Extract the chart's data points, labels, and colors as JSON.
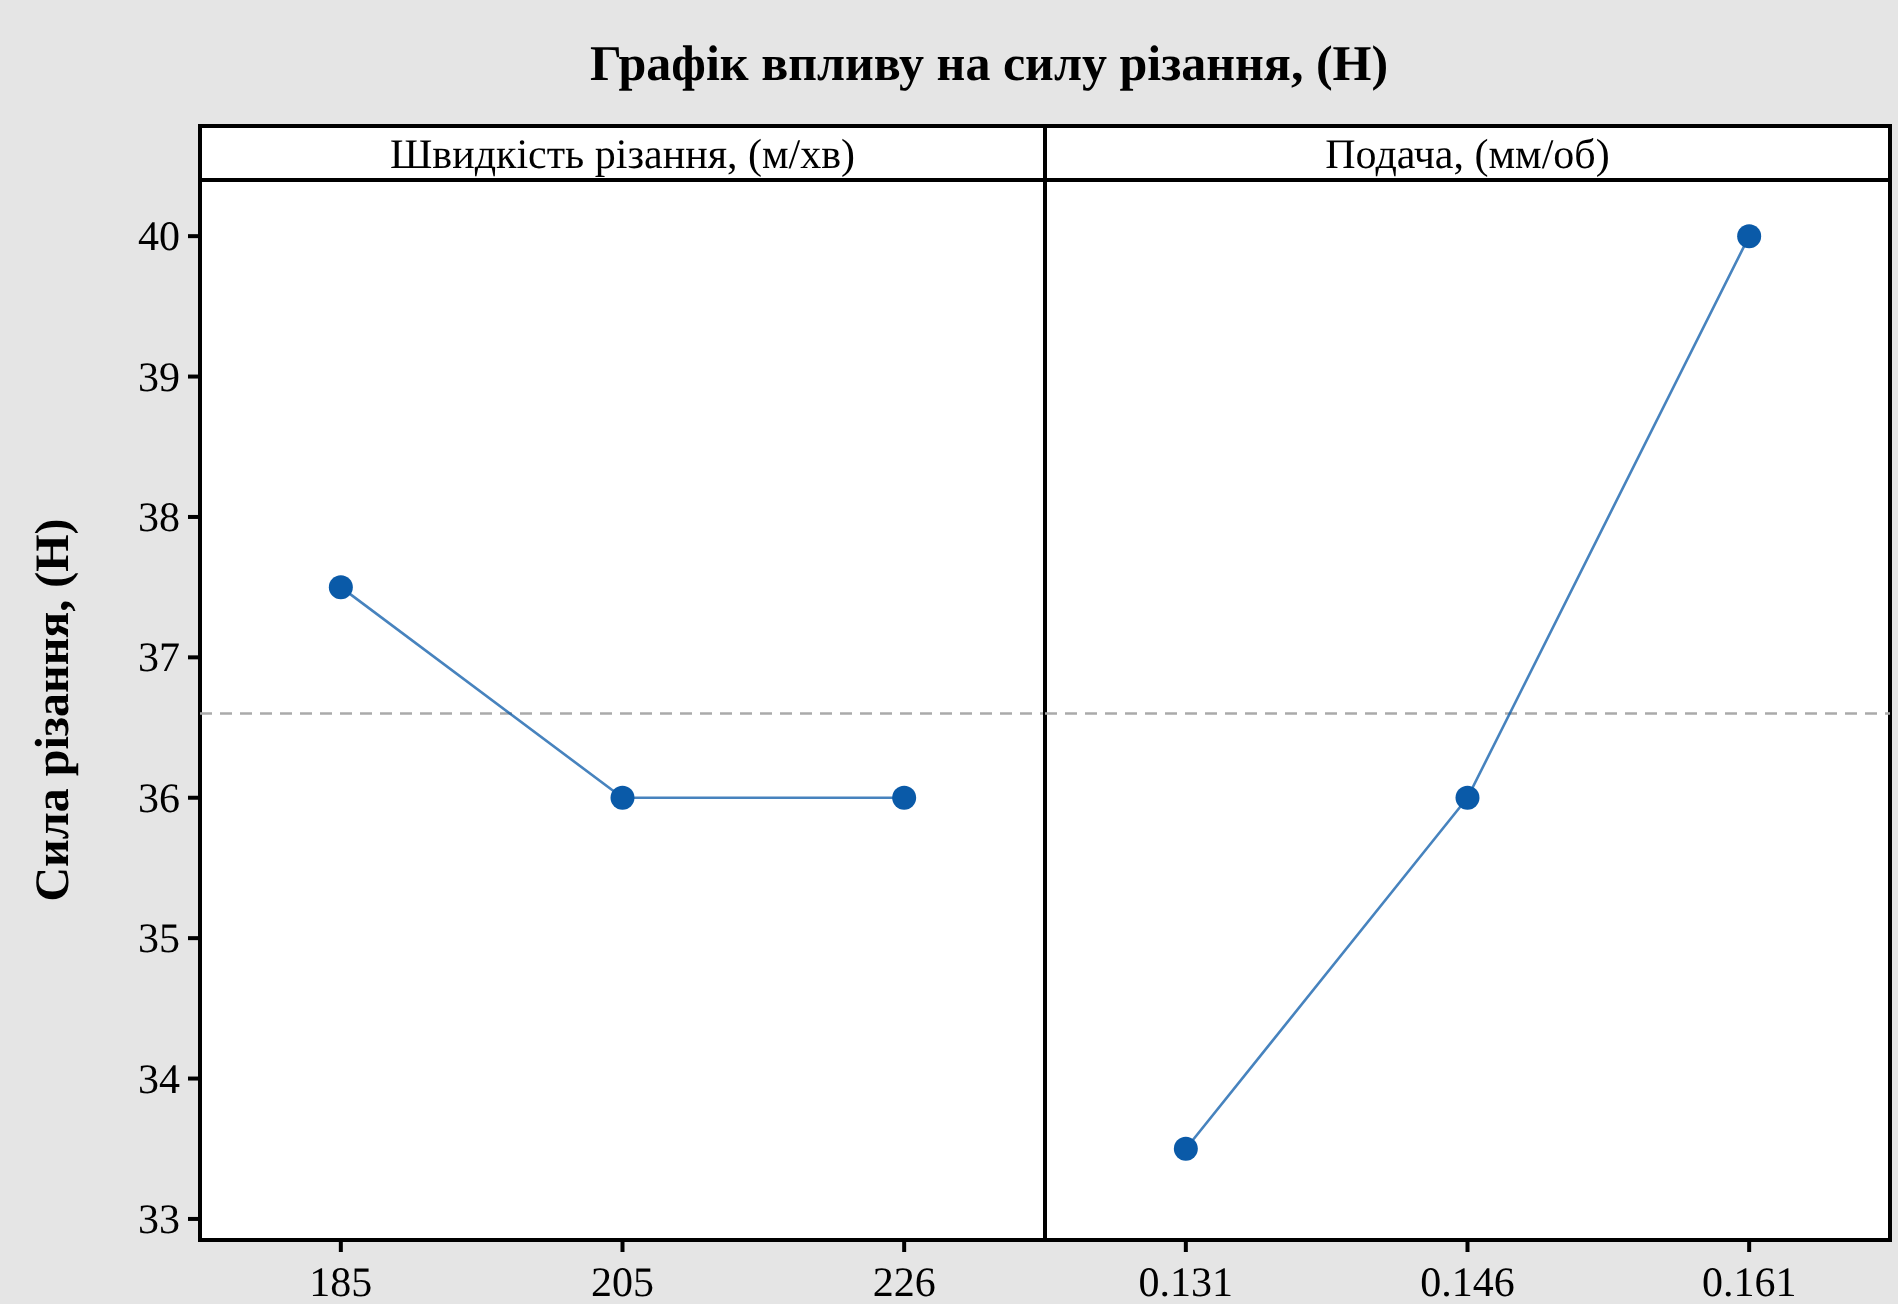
{
  "chart_data": [
    {
      "type": "line",
      "title": "Графік впливу на силу різання, (Н)",
      "subtitle": "Швидкість різання, (м/хв)",
      "ylabel": "Сила різання, (Н)",
      "categories": [
        "185",
        "205",
        "226"
      ],
      "series": [
        {
          "color": "#0a5aa8",
          "values": [
            37.5,
            36,
            36
          ]
        }
      ],
      "ylim": [
        32.85,
        40.4
      ],
      "yticks": [
        33,
        34,
        35,
        36,
        37,
        38,
        39,
        40
      ],
      "ref_lines": [
        {
          "axis": "y",
          "value": 36.6,
          "color": "#aaaaaa",
          "line_style": "dashed"
        }
      ],
      "marker": "circle",
      "line_style": "solid"
    },
    {
      "type": "line",
      "subtitle": "Подача, (мм/об)",
      "categories": [
        "0.131",
        "0.146",
        "0.161"
      ],
      "series": [
        {
          "color": "#0a5aa8",
          "values": [
            33.5,
            36,
            40
          ]
        }
      ],
      "ylim": [
        32.85,
        40.4
      ],
      "ref_lines": [
        {
          "axis": "y",
          "value": 36.6,
          "color": "#aaaaaa",
          "line_style": "dashed"
        }
      ],
      "marker": "circle",
      "line_style": "solid",
      "tick_labels": "x"
    }
  ]
}
